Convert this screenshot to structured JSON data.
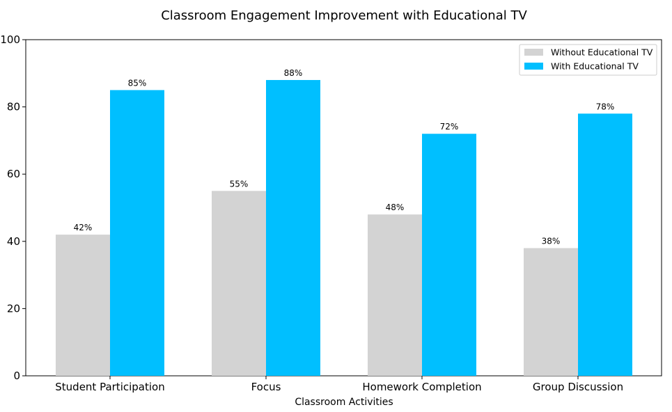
{
  "chart_data": {
    "type": "bar",
    "title": "Classroom Engagement Improvement with Educational TV",
    "xlabel": "Classroom Activities",
    "ylabel": "",
    "categories": [
      "Student Participation",
      "Focus",
      "Homework Completion",
      "Group Discussion"
    ],
    "series": [
      {
        "name": "Without Educational TV",
        "values": [
          42,
          55,
          48,
          38
        ],
        "labels": [
          "42%",
          "55%",
          "48%",
          "38%"
        ],
        "color": "#d3d3d3"
      },
      {
        "name": "With Educational TV",
        "values": [
          85,
          88,
          72,
          78
        ],
        "labels": [
          "85%",
          "88%",
          "72%",
          "78%"
        ],
        "color": "#00bfff"
      }
    ],
    "ylim": [
      0,
      100
    ],
    "yticks": [
      0,
      20,
      40,
      60,
      80,
      100
    ],
    "grid": false,
    "legend_position": "top-right"
  }
}
